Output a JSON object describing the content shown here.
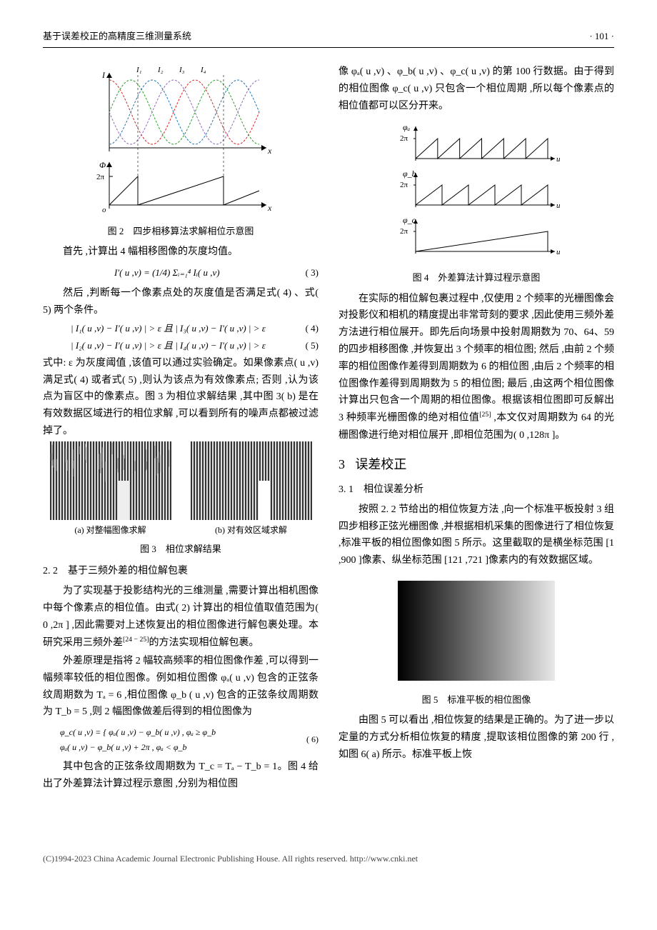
{
  "header": {
    "title": "基于误差校正的高精度三维测量系统",
    "page": "· 101 ·"
  },
  "fig2": {
    "caption": "图 2　四步相移算法求解相位示意图",
    "labels": {
      "I": "I",
      "I1": "I₁",
      "I2": "I₂",
      "I3": "I₃",
      "I4": "I₄",
      "x": "x",
      "phi": "Φ",
      "twopi": "2π",
      "o": "o"
    },
    "colors": {
      "c1": "#d62728",
      "c2": "#2ca02c",
      "c3": "#1f77b4",
      "c4": "#9467bd",
      "axis": "#000"
    }
  },
  "p_before_eq3": "首先 ,计算出 4 幅相移图像的灰度均值。",
  "eq3": {
    "text": "I′( u ,v)  =  (1/4) Σᵢ₌₁⁴ Iᵢ( u ,v)",
    "num": "( 3)"
  },
  "p_after_eq3": "然后 ,判断每一个像素点处的灰度值是否满足式( 4) 、式( 5) 两个条件。",
  "eq4": {
    "text": "| I₁( u ,v)  − I′( u ,v)  | > ε 且  | I₃( u ,v)  − I′( u ,v)  | > ε",
    "num": "( 4)"
  },
  "eq5": {
    "text": "| I₂( u ,v)  − I′( u ,v)  | > ε 且  | I₄( u ,v)  − I′( u ,v)  | > ε",
    "num": "( 5)"
  },
  "p_eps": "式中: ε 为灰度阈值 ,该值可以通过实验确定。如果像素点( u ,v) 满足式( 4) 或者式( 5) ,则认为该点为有效像素点; 否则 ,认为该点为盲区中的像素点。图 3 为相位求解结果 ,其中图 3( b) 是在有效数据区域进行的相位求解 ,可以看到所有的噪声点都被过滤掉了。",
  "fig3": {
    "sub_a": "(a) 对整幅图像求解",
    "sub_b": "(b) 对有效区域求解",
    "caption": "图 3　相位求解结果"
  },
  "sec22": "2. 2　基于三频外差的相位解包裹",
  "p22_1": "为了实现基于投影结构光的三维测量 ,需要计算出相机图像中每个像素点的相位值。由式( 2) 计算出的相位值取值范围为( 0 ,2π ] ,因此需要对上述恢复出的相位图像进行解包裹处理。本研究采用三频外差",
  "p22_1b_ref": "[24 − 25]",
  "p22_1b": "的方法实现相位解包裹。",
  "p22_2": "外差原理是指将 2 幅较高频率的相位图像作差 ,可以得到一幅频率较低的相位图像。例如相位图像 φₐ( u ,v) 包含的正弦条纹周期数为 Tₐ = 6 ,相位图像 φ_b ( u ,v) 包含的正弦条纹周期数为 T_b = 5 ,则 2 幅图像做差后得到的相位图像为",
  "eq6": {
    "line1": "φ_c( u ,v)  = { φₐ( u ,v)  − φ_b( u ,v)  ,        φₐ ≥ φ_b",
    "line2": "                 φₐ( u ,v)  − φ_b( u ,v)  + 2π , φₐ < φ_b",
    "num": "( 6)"
  },
  "p22_3": "其中包含的正弦条纹周期数为 T_c = Tₐ − T_b = 1。图 4 给出了外差算法计算过程示意图 ,分别为相位图",
  "p_r1": "像 φₐ( u ,v) 、φ_b( u ,v) 、φ_c( u ,v) 的第 100 行数据。由于得到的相位图像 φ_c( u ,v) 只包含一个相位周期 ,所以每个像素点的相位值都可以区分开来。",
  "fig4": {
    "caption": "图 4　外差算法计算过程示意图",
    "labels": {
      "phia": "φₐ",
      "phib": "φ_b",
      "phic": "φ_c",
      "twopi": "2π",
      "u": "u"
    },
    "periods": {
      "a": 6,
      "b": 5,
      "c": 1
    }
  },
  "p_r2": "在实际的相位解包裹过程中 ,仅使用 2 个频率的光栅图像会对投影仪和相机的精度提出非常苛刻的要求 ,因此使用三频外差方法进行相位展开。即先后向场景中投射周期数为 70、64、59 的四步相移图像 ,并恢复出 3 个频率的相位图; 然后 ,由前 2 个频率的相位图像作差得到周期数为 6 的相位图 ,由后 2 个频率的相位图像作差得到周期数为 5 的相位图; 最后 ,由这两个相位图像计算出只包含一个周期的相位图像。根据该相位图即可反解出 3 种频率光栅图像的绝对相位值",
  "p_r2_ref": "[25]",
  "p_r2b": " ,本文仅对周期数为 64 的光栅图像进行绝对相位展开 ,即相位范围为( 0 ,128π ]。",
  "sec3": {
    "num": "3",
    "title": "误差校正"
  },
  "sec31": "3. 1　相位误差分析",
  "p31_1": "按照 2. 2 节给出的相位恢复方法 ,向一个标准平板投射 3 组四步相移正弦光栅图像 ,并根据相机采集的图像进行了相位恢复 ,标准平板的相位图像如图 5 所示。这里截取的是横坐标范围 [1 ,900 ]像素、纵坐标范围 [121 ,721 ]像素内的有效数据区域。",
  "fig5": {
    "caption": "图 5　标准平板的相位图像"
  },
  "p31_2": "由图 5 可以看出 ,相位恢复的结果是正确的。为了进一步以定量的方式分析相位恢复的精度 ,提取该相位图像的第 200 行 ,如图 6( a) 所示。标准平板上恢",
  "footer": "(C)1994-2023 China Academic Journal Electronic Publishing House. All rights reserved.    http://www.cnki.net"
}
